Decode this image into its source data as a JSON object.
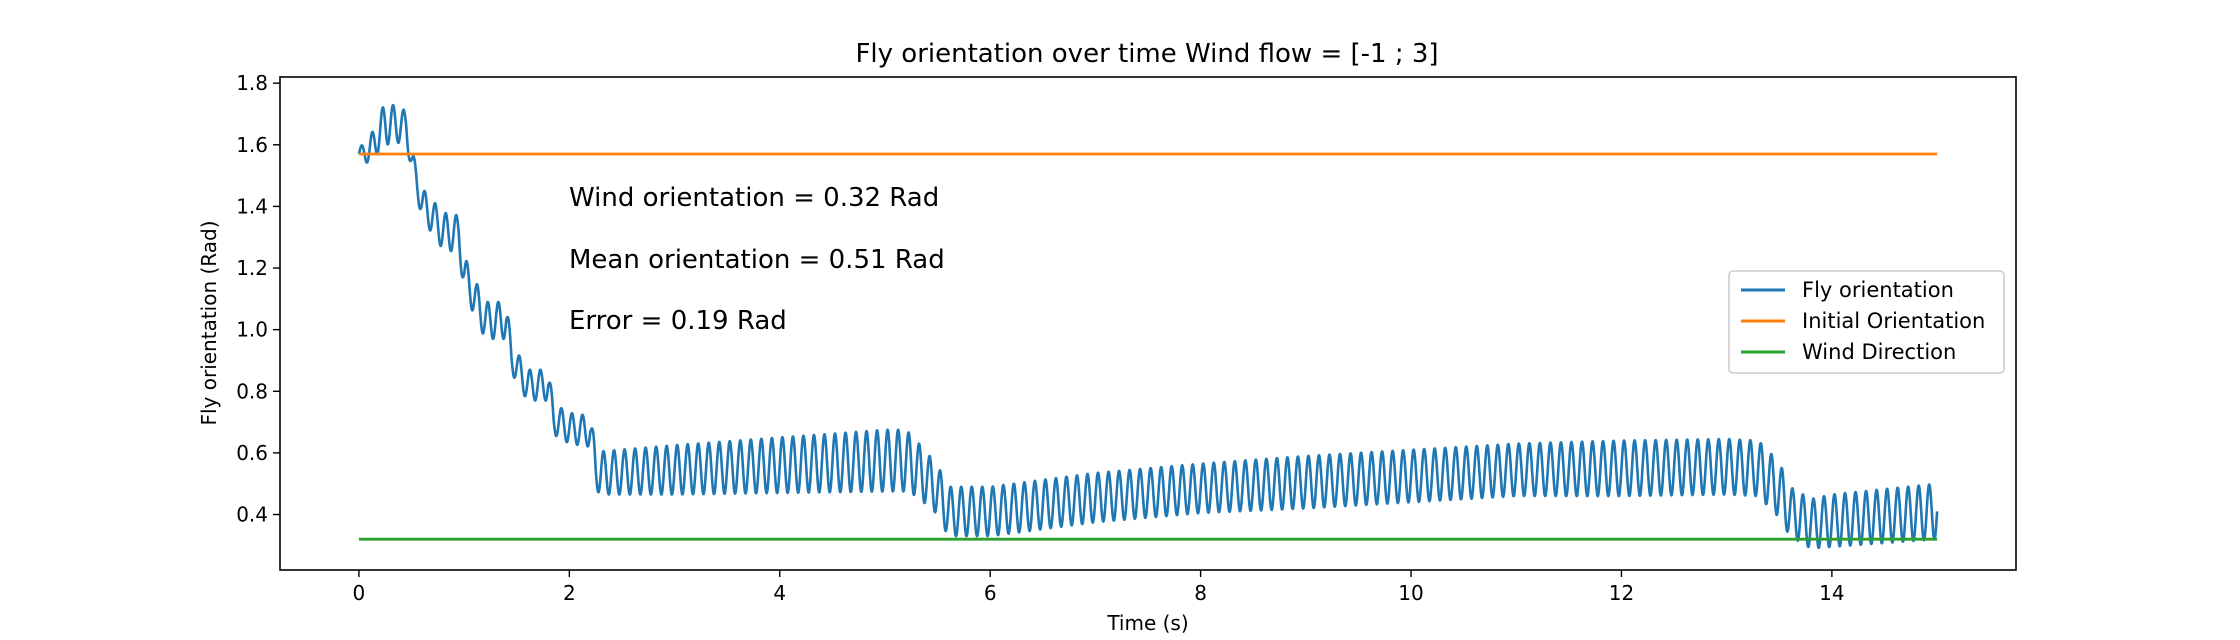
{
  "chart_data": {
    "type": "line",
    "title": "Fly orientation over time Wind flow = [-1 ; 3]",
    "xlabel": "Time (s)",
    "ylabel": "Fly orientation (Rad)",
    "xlim": [
      -0.75,
      15.75
    ],
    "ylim": [
      0.22,
      1.82
    ],
    "xticks": [
      0,
      2,
      4,
      6,
      8,
      10,
      12,
      14
    ],
    "yticks": [
      0.4,
      0.6,
      0.8,
      1.0,
      1.2,
      1.4,
      1.6,
      1.8
    ],
    "xtick_labels": [
      "0",
      "2",
      "4",
      "6",
      "8",
      "10",
      "12",
      "14"
    ],
    "ytick_labels": [
      "0.4",
      "0.6",
      "0.8",
      "1.0",
      "1.2",
      "1.4",
      "1.6",
      "1.8"
    ],
    "grid": false,
    "legend_position": "center-right",
    "annotations": [
      "Wind orientation = 0.32 Rad",
      "Mean orientation = 0.51 Rad",
      "Error = 0.19 Rad"
    ],
    "series": [
      {
        "name": "Fly orientation",
        "color": "#1f77b4",
        "oscillation_period": 0.1,
        "envelope": {
          "t": [
            0,
            0.1,
            0.25,
            0.45,
            0.5,
            0.6,
            0.8,
            0.95,
            1.0,
            1.2,
            1.4,
            1.45,
            1.6,
            1.8,
            1.85,
            2.0,
            2.2,
            2.25,
            2.3,
            3.0,
            4.0,
            5.0,
            5.2,
            5.3,
            5.5,
            5.6,
            6.0,
            7.0,
            8.0,
            9.0,
            10.0,
            11.0,
            12.0,
            13.0,
            13.3,
            13.5,
            13.6,
            13.8,
            14.0,
            15.0
          ],
          "center": [
            1.57,
            1.58,
            1.67,
            1.66,
            1.55,
            1.41,
            1.32,
            1.31,
            1.18,
            1.03,
            1.03,
            0.91,
            0.82,
            0.82,
            0.71,
            0.68,
            0.67,
            0.55,
            0.535,
            0.545,
            0.56,
            0.575,
            0.575,
            0.55,
            0.48,
            0.41,
            0.41,
            0.455,
            0.485,
            0.505,
            0.525,
            0.545,
            0.55,
            0.555,
            0.55,
            0.48,
            0.41,
            0.37,
            0.38,
            0.41
          ],
          "amplitude": [
            0.02,
            0.04,
            0.07,
            0.05,
            0.04,
            0.05,
            0.06,
            0.06,
            0.06,
            0.06,
            0.06,
            0.05,
            0.05,
            0.05,
            0.05,
            0.05,
            0.05,
            0.07,
            0.07,
            0.08,
            0.09,
            0.1,
            0.1,
            0.09,
            0.08,
            0.08,
            0.08,
            0.08,
            0.08,
            0.085,
            0.085,
            0.085,
            0.09,
            0.09,
            0.09,
            0.09,
            0.08,
            0.08,
            0.085,
            0.09
          ]
        }
      },
      {
        "name": "Initial Orientation",
        "color": "#ff7f0e",
        "x": [
          0,
          15
        ],
        "y": [
          1.57,
          1.57
        ]
      },
      {
        "name": "Wind Direction",
        "color": "#2ca02c",
        "x": [
          0,
          15
        ],
        "y": [
          0.32,
          0.32
        ]
      }
    ]
  }
}
